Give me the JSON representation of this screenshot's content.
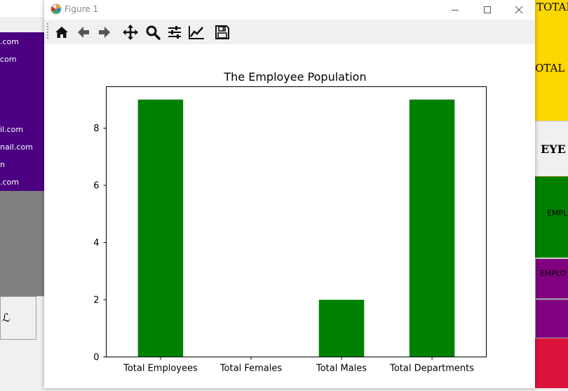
{
  "window": {
    "title": "Figure 1"
  },
  "toolbar": {
    "buttons": [
      "home-icon",
      "back-icon",
      "forward-icon",
      "pan-icon",
      "zoom-icon",
      "configure-subplots-icon",
      "edit-axis-icon",
      "save-icon"
    ]
  },
  "background_left": {
    "emails": [
      ".com",
      "com",
      "il.com",
      "nail.com",
      "n",
      ".com"
    ],
    "button_text": "ℒ",
    "colors": {
      "panel": "#4b0082",
      "grey": "#808080"
    }
  },
  "background_right": {
    "total_1": "TOTAL",
    "total_2": "OTAL I",
    "eye_text": "EYE",
    "green_text": "EMPL",
    "purple_text": "EMPLO",
    "colors": {
      "yellow": "#ffd700",
      "green": "#008000",
      "purple": "#800080",
      "red": "#dc143c"
    }
  },
  "chart_data": {
    "type": "bar",
    "title": "The Employee Population",
    "categories": [
      "Total Employees",
      "Total Females",
      "Total Males",
      "Total Departments"
    ],
    "values": [
      9,
      0,
      2,
      9
    ],
    "ylim": [
      0,
      9.45
    ],
    "yticks": [
      0,
      2,
      4,
      6,
      8
    ],
    "color": "#008000",
    "grid": false,
    "xlabel": "",
    "ylabel": ""
  }
}
